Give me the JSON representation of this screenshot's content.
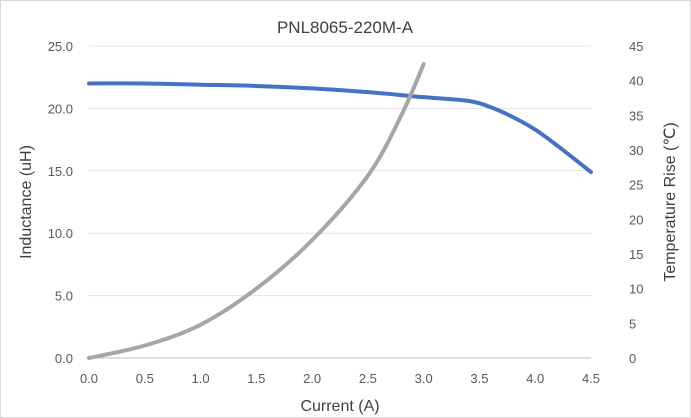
{
  "chart_data": {
    "type": "line",
    "title": "PNL8065-220M-A",
    "xlabel": "Current (A)",
    "ylabel": "Inductance (uH)",
    "y2label": "Temperature Rise (℃)",
    "xlim": [
      0,
      4.5
    ],
    "ylim": [
      0,
      25
    ],
    "y2lim": [
      0,
      45
    ],
    "grid": true,
    "x_ticks": [
      "0.0",
      "0.5",
      "1.0",
      "1.5",
      "2.0",
      "2.5",
      "3.0",
      "3.5",
      "4.0",
      "4.5"
    ],
    "y_ticks": [
      "0.0",
      "5.0",
      "10.0",
      "15.0",
      "20.0",
      "25.0"
    ],
    "y2_ticks": [
      "0",
      "5",
      "10",
      "15",
      "20",
      "25",
      "30",
      "35",
      "40",
      "45"
    ],
    "series": [
      {
        "axis": "left",
        "color": "#4472c4",
        "x": [
          0,
          0.5,
          1.0,
          1.5,
          2.0,
          2.5,
          3.0,
          3.4,
          3.6,
          3.8,
          4.0,
          4.2,
          4.5
        ],
        "y": [
          22.0,
          22.0,
          21.9,
          21.8,
          21.6,
          21.3,
          20.9,
          20.6,
          20.1,
          19.3,
          18.3,
          17.0,
          14.9
        ]
      },
      {
        "axis": "right",
        "color": "#a6a6a6",
        "x": [
          0,
          0.5,
          1.0,
          1.5,
          2.0,
          2.5,
          2.8,
          3.0
        ],
        "y": [
          0,
          1.8,
          4.8,
          10.0,
          17.0,
          26.3,
          35.0,
          42.4
        ]
      }
    ]
  }
}
